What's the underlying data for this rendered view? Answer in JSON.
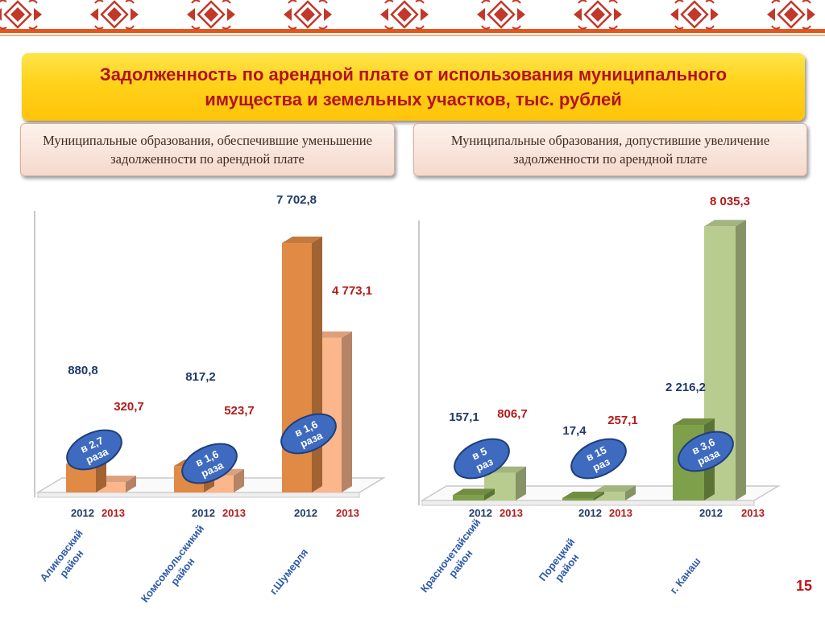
{
  "title": "Задолженность по арендной плате от использования муниципального имущества и земельных участков, тыс. рублей",
  "left_panel": {
    "heading": "Муниципальные образования, обеспечившие уменьшение задолженности по арендной плате"
  },
  "right_panel": {
    "heading": "Муниципальные образования, допустившие увеличение задолженности по арендной плате"
  },
  "page_number": "15",
  "colors": {
    "ornament": "#c0392b",
    "band_stripe": "#e2571e",
    "title_text": "#b5121b",
    "title_bg": "#ffd21a",
    "orange_2012": "#e08a45",
    "orange_2013": "#fbb68c",
    "green_2012": "#7fa04a",
    "green_2013": "#b9cc8f",
    "value_2012": "#1f3a6a",
    "value_2013": "#b31b1b",
    "badge": "#3e6bbf"
  },
  "chart_data": [
    {
      "type": "bar",
      "series": [
        {
          "name": "2012",
          "values": [
            880.8,
            817.2,
            7702.8
          ],
          "labels": [
            "880,8",
            "817,2",
            "7 702,8"
          ]
        },
        {
          "name": "2013",
          "values": [
            320.7,
            523.7,
            4773.1
          ],
          "labels": [
            "320,7",
            "523,7",
            "4 773,1"
          ]
        }
      ],
      "groups": [
        {
          "category": [
            "Аликовский",
            "район"
          ],
          "year_2012": "2012",
          "year_2013": "2013",
          "badge": [
            "в 2,7",
            "раза"
          ]
        },
        {
          "category": [
            "Комсомольскикий",
            "район"
          ],
          "year_2012": "2012",
          "year_2013": "2013",
          "badge": [
            "в 1,6",
            "раза"
          ]
        },
        {
          "category": [
            "г.Шумерля"
          ],
          "year_2012": "2012",
          "year_2013": "2013",
          "badge": [
            "в 1,6",
            "раза"
          ]
        }
      ],
      "ylim": [
        0,
        8300
      ]
    },
    {
      "type": "bar",
      "series": [
        {
          "name": "2012",
          "values": [
            157.1,
            17.4,
            2216.2
          ],
          "labels": [
            "157,1",
            "17,4",
            "2 216,2"
          ]
        },
        {
          "name": "2013",
          "values": [
            806.7,
            257.1,
            8035.3
          ],
          "labels": [
            "806,7",
            "257,1",
            "8 035,3"
          ]
        }
      ],
      "groups": [
        {
          "category": [
            "Красночетайский",
            "район"
          ],
          "year_2012": "2012",
          "year_2013": "2013",
          "badge": [
            "в 5",
            "раз"
          ]
        },
        {
          "category": [
            "Порецкий",
            "район"
          ],
          "year_2012": "2012",
          "year_2013": "2013",
          "badge": [
            "в 15",
            "раз"
          ]
        },
        {
          "category": [
            "г. Канаш"
          ],
          "year_2012": "2012",
          "year_2013": "2013",
          "badge": [
            "в 3,6",
            "раза"
          ]
        }
      ],
      "ylim": [
        0,
        8300
      ]
    }
  ]
}
